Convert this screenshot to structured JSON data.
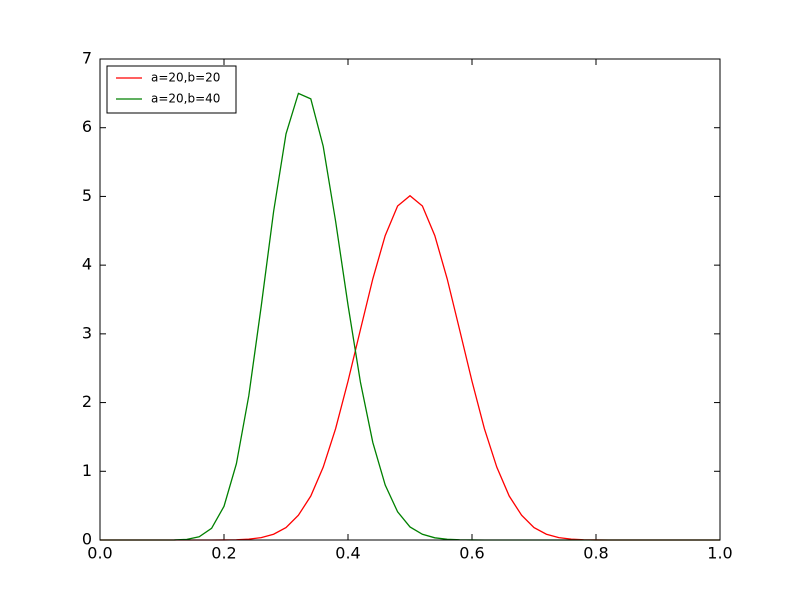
{
  "chart_data": {
    "type": "line",
    "x": [
      0,
      0.02,
      0.04,
      0.06,
      0.08,
      0.1,
      0.12,
      0.14,
      0.16,
      0.18,
      0.2,
      0.22,
      0.24,
      0.26,
      0.28,
      0.3,
      0.32,
      0.34,
      0.36,
      0.38,
      0.4,
      0.42,
      0.44,
      0.46,
      0.48,
      0.5,
      0.52,
      0.54,
      0.56,
      0.58,
      0.6,
      0.62,
      0.64,
      0.66,
      0.68,
      0.7,
      0.72,
      0.74,
      0.76,
      0.78,
      0.8,
      0.82,
      0.84,
      0.86,
      0.88,
      0.9,
      0.92,
      0.94,
      0.96,
      0.98,
      1.0
    ],
    "series": [
      {
        "name": "a=20,b=20",
        "color": "#ff0000",
        "values": [
          0,
          0,
          0,
          0,
          0,
          0,
          0,
          0,
          0,
          0,
          0.001,
          0.004,
          0.013,
          0.035,
          0.084,
          0.18,
          0.36,
          0.64,
          1.06,
          1.62,
          2.31,
          3.06,
          3.8,
          4.43,
          4.86,
          5.01,
          4.86,
          4.43,
          3.8,
          3.06,
          2.31,
          1.62,
          1.06,
          0.64,
          0.36,
          0.18,
          0.084,
          0.035,
          0.013,
          0.004,
          0.001,
          0,
          0,
          0,
          0,
          0,
          0,
          0,
          0,
          0,
          0
        ]
      },
      {
        "name": "a=20,b=40",
        "color": "#008000",
        "values": [
          0,
          0,
          0,
          0,
          0,
          0,
          0.001,
          0.009,
          0.047,
          0.17,
          0.49,
          1.11,
          2.1,
          3.4,
          4.78,
          5.91,
          6.5,
          6.42,
          5.73,
          4.64,
          3.42,
          2.3,
          1.42,
          0.8,
          0.41,
          0.19,
          0.083,
          0.032,
          0.011,
          0.004,
          0.001,
          0,
          0,
          0,
          0,
          0,
          0,
          0,
          0,
          0,
          0,
          0,
          0,
          0,
          0,
          0,
          0,
          0,
          0,
          0,
          0
        ]
      }
    ],
    "xlim": [
      0,
      1.0
    ],
    "ylim": [
      0,
      7
    ],
    "xticks": [
      {
        "value": 0,
        "label": "0.0"
      },
      0.2,
      0.4,
      0.6,
      0.8,
      {
        "value": 1.0,
        "label": "1.0"
      }
    ],
    "yticks": [
      0,
      1,
      2,
      3,
      4,
      5,
      6,
      7
    ],
    "grid": false,
    "legend": "upper-left"
  }
}
